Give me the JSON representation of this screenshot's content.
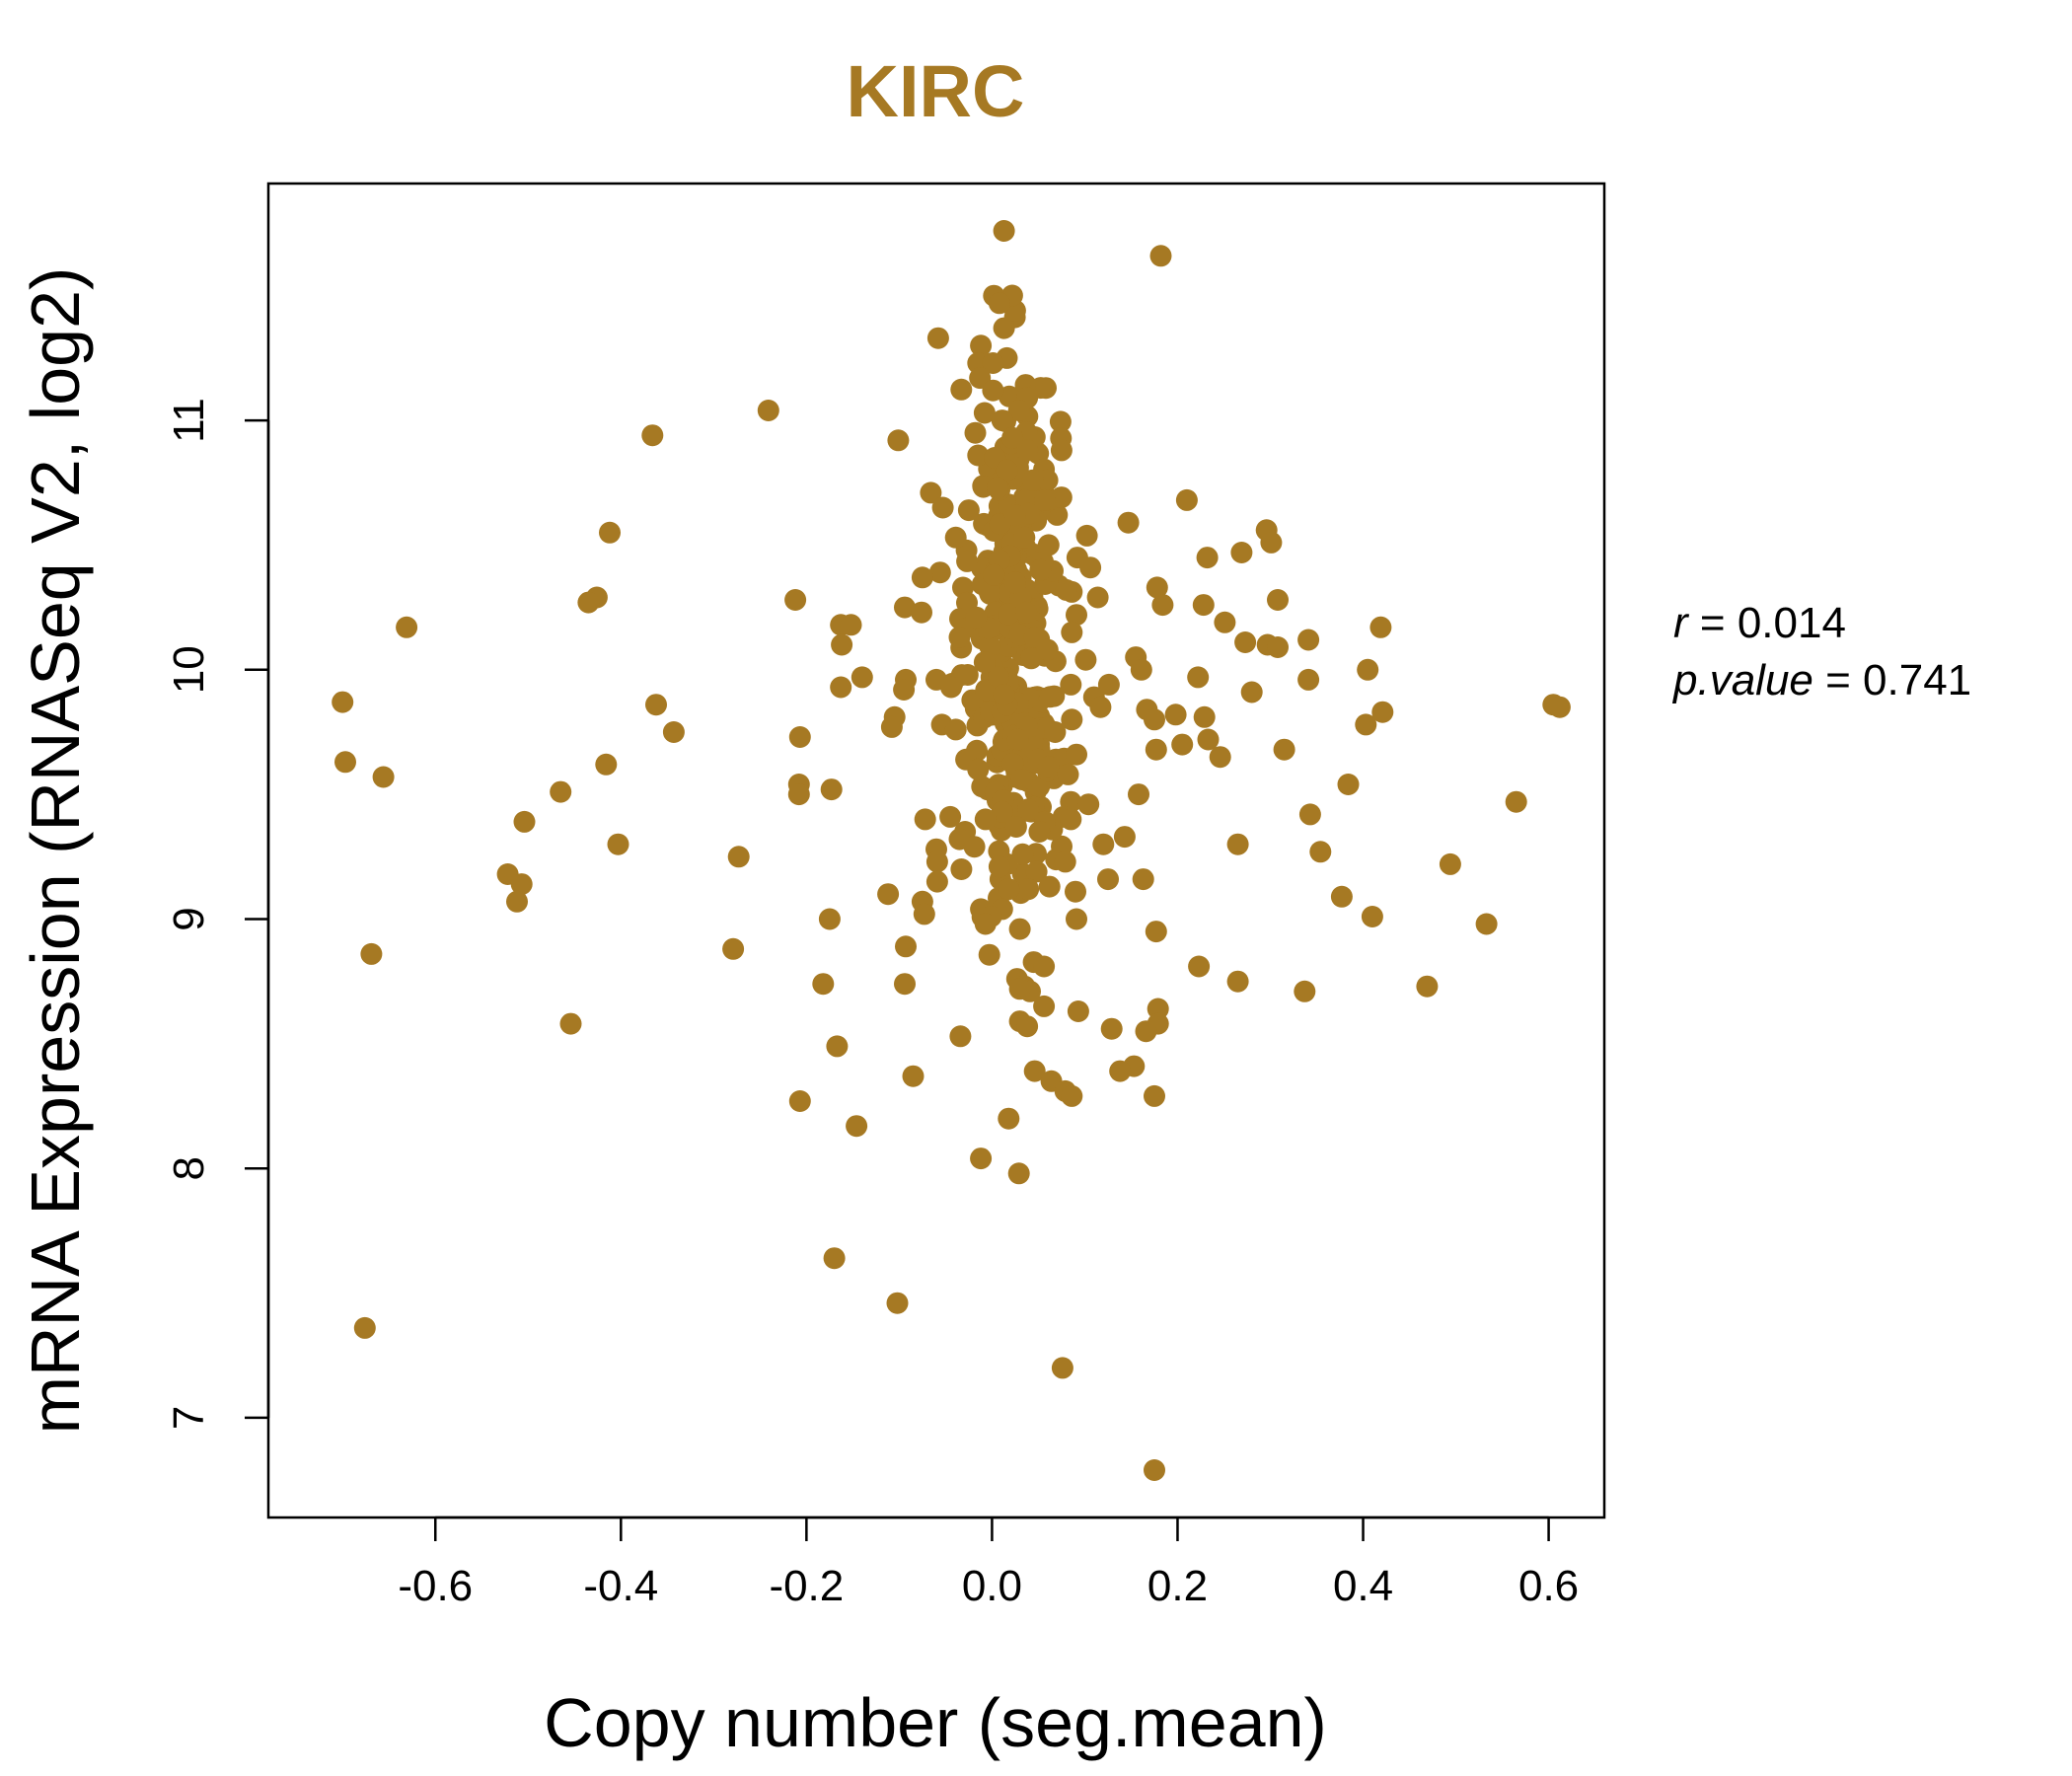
{
  "chart_data": {
    "type": "scatter",
    "title": "KIRC",
    "xlabel": "Copy number (seg.mean)",
    "ylabel": "mRNA Expression (RNASeq V2, log2)",
    "xlim": [
      -0.78,
      0.66
    ],
    "ylim": [
      6.6,
      11.95
    ],
    "xticks": [
      -0.6,
      -0.4,
      -0.2,
      0.0,
      0.2,
      0.4,
      0.6
    ],
    "xtick_labels": [
      "-0.6",
      "-0.4",
      "-0.2",
      "0.0",
      "0.2",
      "0.4",
      "0.6"
    ],
    "yticks": [
      7,
      8,
      9,
      10,
      11
    ],
    "ytick_labels": [
      "7",
      "8",
      "9",
      "10",
      "11"
    ],
    "grid": false,
    "point_color": "#A67923",
    "title_color": "#A67923",
    "stats": {
      "r_label": "r",
      "r_value": "0.014",
      "p_label": "p.value",
      "p_value": "0.741"
    },
    "series": [
      {
        "points": [
          [
            0.013,
            11.76
          ],
          [
            0.182,
            11.66
          ],
          [
            0.002,
            11.5
          ],
          [
            0.008,
            11.47
          ],
          [
            0.013,
            11.37
          ],
          [
            -0.058,
            11.33
          ],
          [
            -0.012,
            11.3
          ],
          [
            -0.015,
            11.23
          ],
          [
            0.016,
            11.25
          ],
          [
            0.001,
            11.23
          ],
          [
            -0.013,
            11.17
          ],
          [
            0.058,
            11.13
          ],
          [
            0.001,
            11.12
          ],
          [
            0.038,
            11.09
          ],
          [
            0.029,
            11.04
          ],
          [
            -0.241,
            11.04
          ],
          [
            -0.008,
            11.03
          ],
          [
            0.011,
            11.0
          ],
          [
            -0.366,
            10.94
          ],
          [
            -0.101,
            10.92
          ],
          [
            -0.018,
            10.95
          ],
          [
            0.022,
            10.93
          ],
          [
            0.038,
            10.88
          ],
          [
            0.075,
            10.88
          ],
          [
            -0.015,
            10.86
          ],
          [
            0.003,
            10.85
          ],
          [
            0.016,
            10.8
          ],
          [
            0.044,
            10.76
          ],
          [
            0.006,
            10.73
          ],
          [
            -0.066,
            10.71
          ],
          [
            0.21,
            10.68
          ],
          [
            0.057,
            10.68
          ],
          [
            -0.053,
            10.65
          ],
          [
            -0.025,
            10.64
          ],
          [
            0.025,
            10.62
          ],
          [
            0.147,
            10.59
          ],
          [
            0.296,
            10.56
          ],
          [
            -0.412,
            10.55
          ],
          [
            -0.039,
            10.53
          ],
          [
            0.035,
            10.53
          ],
          [
            0.301,
            10.51
          ],
          [
            0.061,
            10.5
          ],
          [
            0.269,
            10.47
          ],
          [
            0.232,
            10.45
          ],
          [
            0.092,
            10.45
          ],
          [
            0.008,
            10.44
          ],
          [
            0.106,
            10.41
          ],
          [
            0.052,
            10.4
          ],
          [
            -0.056,
            10.39
          ],
          [
            0.002,
            10.38
          ],
          [
            -0.075,
            10.37
          ],
          [
            0.025,
            10.35
          ],
          [
            0.178,
            10.33
          ],
          [
            0.08,
            10.32
          ],
          [
            -0.212,
            10.28
          ],
          [
            0.114,
            10.29
          ],
          [
            -0.426,
            10.29
          ],
          [
            -0.435,
            10.27
          ],
          [
            0.308,
            10.28
          ],
          [
            0.228,
            10.26
          ],
          [
            0.184,
            10.26
          ],
          [
            -0.094,
            10.25
          ],
          [
            -0.076,
            10.23
          ],
          [
            0.037,
            10.23
          ],
          [
            0.091,
            10.22
          ],
          [
            -0.017,
            10.21
          ],
          [
            0.251,
            10.19
          ],
          [
            -0.163,
            10.18
          ],
          [
            -0.152,
            10.18
          ],
          [
            -0.631,
            10.17
          ],
          [
            0.419,
            10.17
          ],
          [
            0.086,
            10.15
          ],
          [
            0.046,
            10.13
          ],
          [
            -0.035,
            10.13
          ],
          [
            0.273,
            10.11
          ],
          [
            0.341,
            10.12
          ],
          [
            0.297,
            10.1
          ],
          [
            0.308,
            10.09
          ],
          [
            -0.162,
            10.1
          ],
          [
            0.06,
            10.08
          ],
          [
            0.155,
            10.05
          ],
          [
            -0.008,
            10.03
          ],
          [
            0.101,
            10.04
          ],
          [
            0.405,
            10.0
          ],
          [
            0.161,
            10.0
          ],
          [
            -0.14,
            9.97
          ],
          [
            0.222,
            9.97
          ],
          [
            -0.093,
            9.96
          ],
          [
            0.341,
            9.96
          ],
          [
            0.126,
            9.94
          ],
          [
            -0.06,
            9.96
          ],
          [
            0.085,
            9.94
          ],
          [
            -0.163,
            9.93
          ],
          [
            -0.095,
            9.92
          ],
          [
            -0.044,
            9.93
          ],
          [
            0.28,
            9.91
          ],
          [
            0.013,
            9.9
          ],
          [
            0.11,
            9.89
          ],
          [
            -0.7,
            9.87
          ],
          [
            -0.362,
            9.86
          ],
          [
            0.117,
            9.85
          ],
          [
            0.605,
            9.86
          ],
          [
            0.612,
            9.85
          ],
          [
            0.167,
            9.84
          ],
          [
            0.421,
            9.83
          ],
          [
            0.198,
            9.82
          ],
          [
            0.175,
            9.8
          ],
          [
            0.229,
            9.81
          ],
          [
            0.086,
            9.8
          ],
          [
            -0.105,
            9.81
          ],
          [
            0.403,
            9.78
          ],
          [
            -0.108,
            9.77
          ],
          [
            0.038,
            9.77
          ],
          [
            -0.054,
            9.78
          ],
          [
            -0.039,
            9.76
          ],
          [
            -0.343,
            9.75
          ],
          [
            0.068,
            9.75
          ],
          [
            -0.207,
            9.73
          ],
          [
            0.233,
            9.72
          ],
          [
            0.028,
            9.72
          ],
          [
            0.205,
            9.7
          ],
          [
            0.177,
            9.68
          ],
          [
            0.315,
            9.68
          ],
          [
            0.091,
            9.66
          ],
          [
            0.246,
            9.65
          ],
          [
            -0.028,
            9.64
          ],
          [
            0.05,
            9.64
          ],
          [
            -0.697,
            9.63
          ],
          [
            -0.416,
            9.62
          ],
          [
            0.061,
            9.61
          ],
          [
            -0.015,
            9.6
          ],
          [
            0.082,
            9.58
          ],
          [
            -0.656,
            9.57
          ],
          [
            0.032,
            9.56
          ],
          [
            -0.208,
            9.54
          ],
          [
            0.384,
            9.54
          ],
          [
            -0.173,
            9.52
          ],
          [
            -0.465,
            9.51
          ],
          [
            -0.208,
            9.5
          ],
          [
            0.158,
            9.5
          ],
          [
            0.565,
            9.47
          ],
          [
            0.085,
            9.47
          ],
          [
            0.104,
            9.46
          ],
          [
            0.039,
            9.44
          ],
          [
            0.011,
            9.43
          ],
          [
            -0.045,
            9.41
          ],
          [
            -0.072,
            9.4
          ],
          [
            0.077,
            9.41
          ],
          [
            -0.007,
            9.4
          ],
          [
            0.343,
            9.42
          ],
          [
            0.085,
            9.4
          ],
          [
            -0.504,
            9.39
          ],
          [
            0.057,
            9.39
          ],
          [
            0.026,
            9.37
          ],
          [
            0.051,
            9.35
          ],
          [
            -0.029,
            9.35
          ],
          [
            0.143,
            9.33
          ],
          [
            -0.035,
            9.32
          ],
          [
            -0.06,
            9.28
          ],
          [
            0.12,
            9.3
          ],
          [
            0.265,
            9.3
          ],
          [
            -0.403,
            9.3
          ],
          [
            0.354,
            9.27
          ],
          [
            -0.019,
            9.29
          ],
          [
            0.033,
            9.26
          ],
          [
            -0.273,
            9.25
          ],
          [
            0.494,
            9.22
          ],
          [
            0.079,
            9.23
          ],
          [
            -0.059,
            9.23
          ],
          [
            0.008,
            9.21
          ],
          [
            -0.033,
            9.2
          ],
          [
            0.048,
            9.19
          ],
          [
            -0.522,
            9.18
          ],
          [
            0.125,
            9.16
          ],
          [
            0.163,
            9.16
          ],
          [
            -0.059,
            9.15
          ],
          [
            -0.507,
            9.14
          ],
          [
            0.062,
            9.13
          ],
          [
            0.039,
            9.12
          ],
          [
            0.018,
            9.12
          ],
          [
            0.09,
            9.11
          ],
          [
            -0.112,
            9.1
          ],
          [
            0.377,
            9.09
          ],
          [
            -0.512,
            9.07
          ],
          [
            -0.075,
            9.07
          ],
          [
            0.011,
            9.04
          ],
          [
            -0.012,
            9.04
          ],
          [
            0.41,
            9.01
          ],
          [
            -0.073,
            9.02
          ],
          [
            -0.001,
            9.01
          ],
          [
            -0.175,
            9.0
          ],
          [
            0.091,
            9.0
          ],
          [
            -0.007,
            8.98
          ],
          [
            0.533,
            8.98
          ],
          [
            0.03,
            8.96
          ],
          [
            0.177,
            8.95
          ],
          [
            -0.093,
            8.89
          ],
          [
            -0.279,
            8.88
          ],
          [
            -0.669,
            8.86
          ],
          [
            0.223,
            8.81
          ],
          [
            0.056,
            8.81
          ],
          [
            0.027,
            8.76
          ],
          [
            0.265,
            8.75
          ],
          [
            -0.094,
            8.74
          ],
          [
            0.035,
            8.73
          ],
          [
            -0.182,
            8.74
          ],
          [
            0.041,
            8.71
          ],
          [
            0.469,
            8.73
          ],
          [
            0.337,
            8.71
          ],
          [
            0.03,
            8.72
          ],
          [
            0.056,
            8.65
          ],
          [
            0.179,
            8.64
          ],
          [
            0.093,
            8.63
          ],
          [
            0.179,
            8.58
          ],
          [
            -0.454,
            8.58
          ],
          [
            0.03,
            8.59
          ],
          [
            0.038,
            8.57
          ],
          [
            0.129,
            8.56
          ],
          [
            0.166,
            8.55
          ],
          [
            -0.034,
            8.53
          ],
          [
            -0.167,
            8.49
          ],
          [
            0.153,
            8.41
          ],
          [
            0.046,
            8.39
          ],
          [
            0.138,
            8.39
          ],
          [
            -0.085,
            8.37
          ],
          [
            0.064,
            8.35
          ],
          [
            0.079,
            8.31
          ],
          [
            0.086,
            8.29
          ],
          [
            0.175,
            8.29
          ],
          [
            -0.207,
            8.27
          ],
          [
            0.018,
            8.2
          ],
          [
            -0.146,
            8.17
          ],
          [
            -0.012,
            8.04
          ],
          [
            0.029,
            7.98
          ],
          [
            -0.17,
            7.64
          ],
          [
            -0.102,
            7.46
          ],
          [
            -0.676,
            7.36
          ],
          [
            0.076,
            7.2
          ],
          [
            0.175,
            6.79
          ]
        ]
      }
    ],
    "cluster": {
      "x_center": 0.025,
      "x_spread": 0.024,
      "y_center": 10.15,
      "y_spread": 0.5,
      "count": 300
    }
  }
}
